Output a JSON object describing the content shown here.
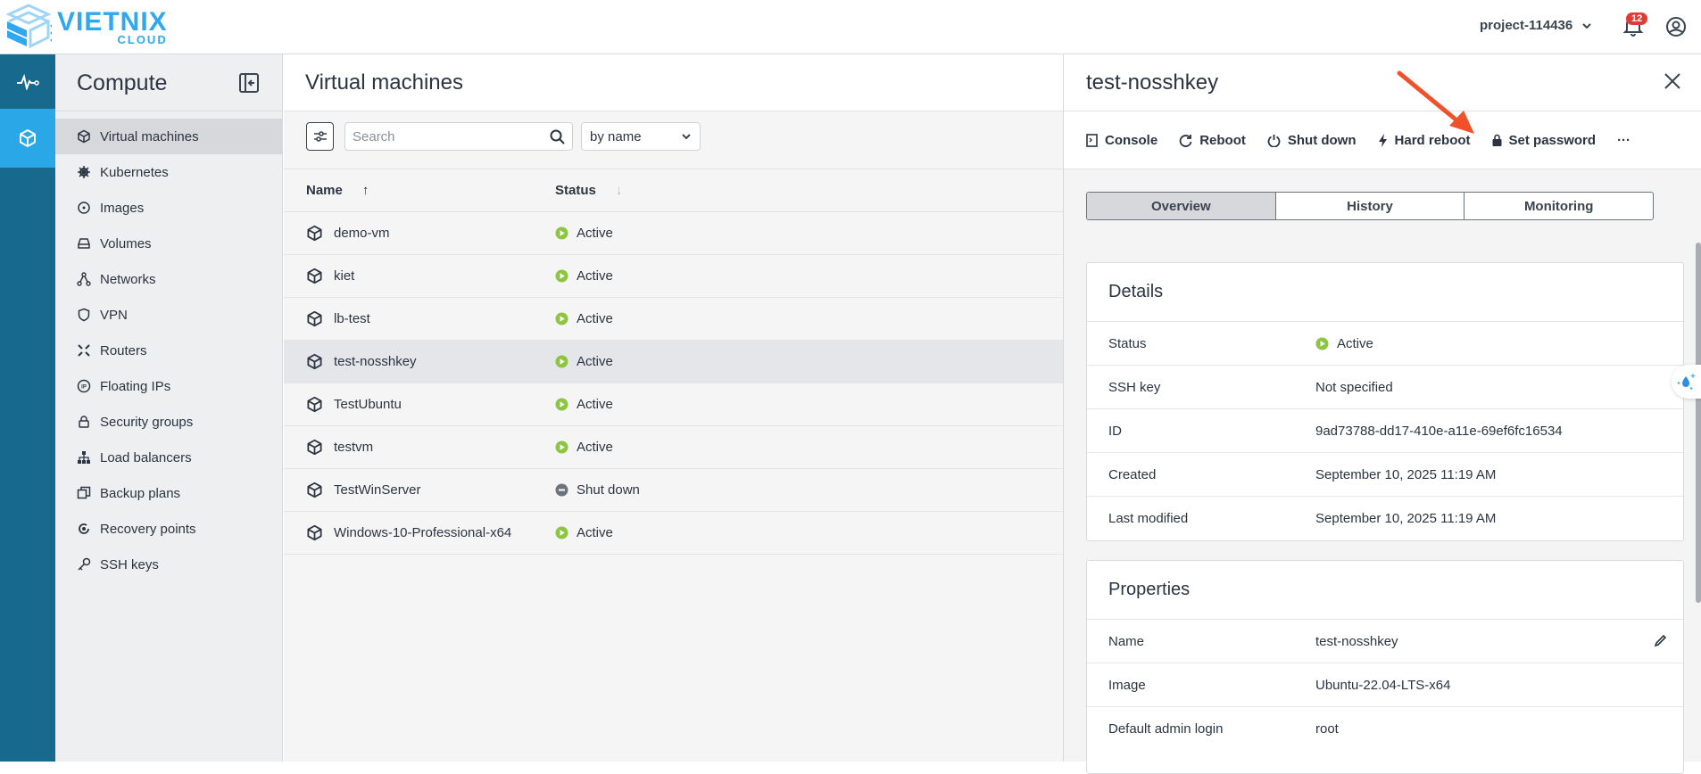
{
  "brand": {
    "name": "VIETNIX",
    "sub": "CLOUD"
  },
  "header": {
    "project": "project-114436",
    "notifications": "12"
  },
  "nav": {
    "title": "Compute",
    "items": [
      {
        "label": "Virtual machines",
        "icon": "cube-icon",
        "selected": true
      },
      {
        "label": "Kubernetes",
        "icon": "helm-icon"
      },
      {
        "label": "Images",
        "icon": "disc-icon"
      },
      {
        "label": "Volumes",
        "icon": "drive-icon"
      },
      {
        "label": "Networks",
        "icon": "network-icon"
      },
      {
        "label": "VPN",
        "icon": "shield-icon"
      },
      {
        "label": "Routers",
        "icon": "router-icon"
      },
      {
        "label": "Floating IPs",
        "icon": "ip-icon"
      },
      {
        "label": "Security groups",
        "icon": "lock-icon"
      },
      {
        "label": "Load balancers",
        "icon": "sitemap-icon"
      },
      {
        "label": "Backup plans",
        "icon": "copy-icon"
      },
      {
        "label": "Recovery points",
        "icon": "restore-icon"
      },
      {
        "label": "SSH keys",
        "icon": "key-icon"
      }
    ]
  },
  "main": {
    "title": "Virtual machines",
    "search_placeholder": "Search",
    "sort": "by name",
    "columns": {
      "name": "Name",
      "status": "Status"
    },
    "rows": [
      {
        "name": "demo-vm",
        "status": "Active"
      },
      {
        "name": "kiet",
        "status": "Active"
      },
      {
        "name": "lb-test",
        "status": "Active"
      },
      {
        "name": "test-nosshkey",
        "status": "Active",
        "selected": true
      },
      {
        "name": "TestUbuntu",
        "status": "Active"
      },
      {
        "name": "testvm",
        "status": "Active"
      },
      {
        "name": "TestWinServer",
        "status": "Shut down"
      },
      {
        "name": "Windows-10-Professional-x64",
        "status": "Active"
      }
    ]
  },
  "panel": {
    "title": "test-nosshkey",
    "actions": {
      "console": "Console",
      "reboot": "Reboot",
      "shutdown": "Shut down",
      "hard_reboot": "Hard reboot",
      "set_password": "Set password"
    },
    "tabs": [
      "Overview",
      "History",
      "Monitoring"
    ],
    "details": {
      "title": "Details",
      "rows": [
        {
          "k": "Status",
          "v": "Active"
        },
        {
          "k": "SSH key",
          "v": "Not specified"
        },
        {
          "k": "ID",
          "v": "9ad73788-dd17-410e-a11e-69ef6fc16534"
        },
        {
          "k": "Created",
          "v": "September 10, 2025 11:19 AM"
        },
        {
          "k": "Last modified",
          "v": "September 10, 2025 11:19 AM"
        }
      ]
    },
    "properties": {
      "title": "Properties",
      "rows": [
        {
          "k": "Name",
          "v": "test-nosshkey"
        },
        {
          "k": "Image",
          "v": "Ubuntu-22.04-LTS-x64"
        },
        {
          "k": "Default admin login",
          "v": "root"
        }
      ]
    }
  },
  "colors": {
    "active": "#8cc63f",
    "shutdown": "#6b737c",
    "accent": "#29a7e6",
    "rail": "#176a8d",
    "annotation_arrow": "#f0502a"
  }
}
